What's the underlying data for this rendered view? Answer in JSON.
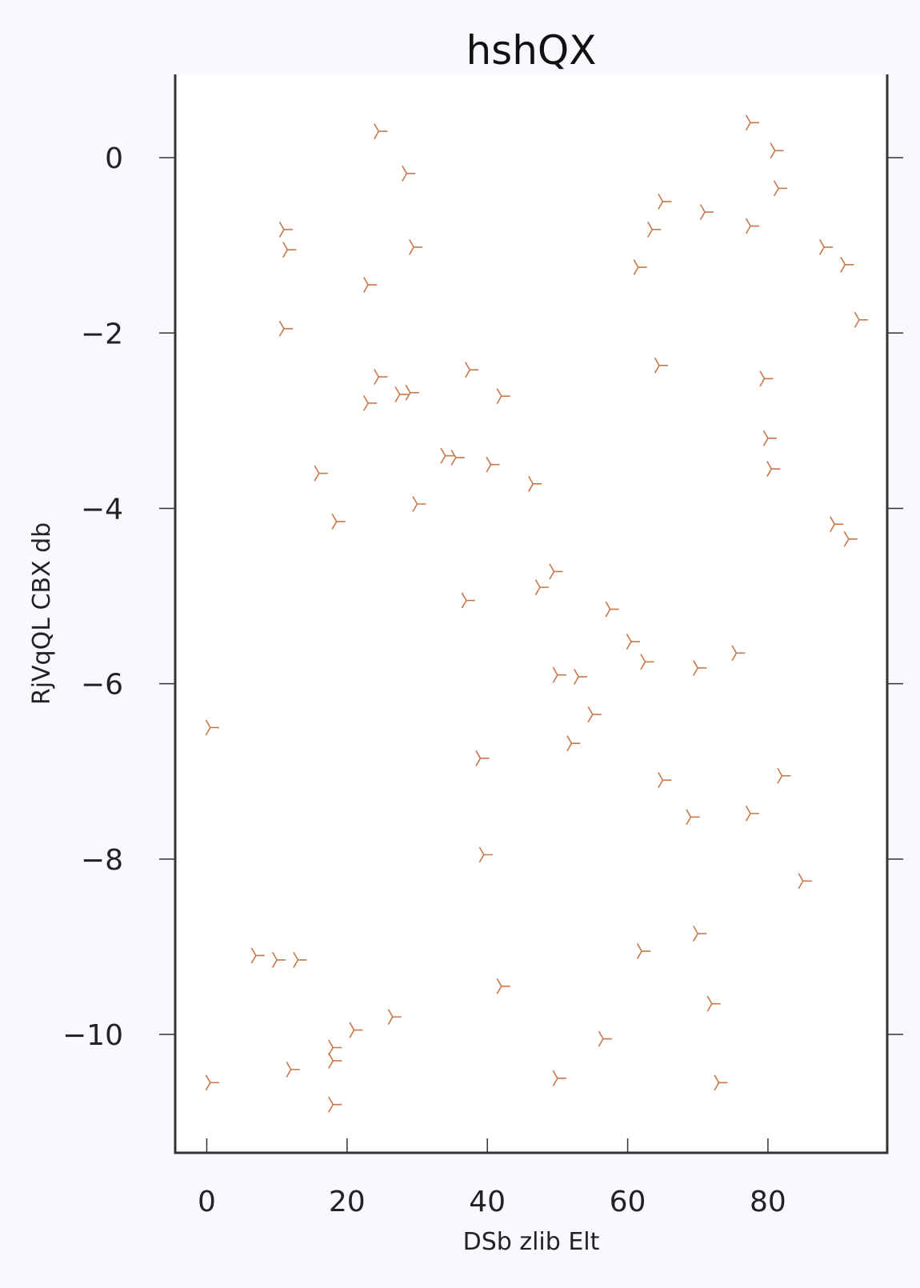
{
  "chart_data": {
    "type": "scatter",
    "title": "hshQX",
    "xlabel": "DSb zlib Elt",
    "ylabel": "RjVqQL CBX db",
    "xlim": [
      -4.5,
      97
    ],
    "ylim": [
      -11.35,
      0.95
    ],
    "xticks": [
      0,
      20,
      40,
      60,
      80
    ],
    "yticks": [
      0,
      -2,
      -4,
      -6,
      -8,
      -10
    ],
    "xtick_labels": [
      "0",
      "20",
      "40",
      "60",
      "80"
    ],
    "ytick_labels": [
      "0",
      "−2",
      "−4",
      "−6",
      "−8",
      "−10"
    ],
    "grid": false,
    "marker": "tri_right",
    "marker_color": "#c87848",
    "points": [
      [
        0.5,
        -6.5
      ],
      [
        0.5,
        -10.55
      ],
      [
        7,
        -9.1
      ],
      [
        10,
        -9.15
      ],
      [
        13,
        -9.15
      ],
      [
        11,
        -0.82
      ],
      [
        11.5,
        -1.05
      ],
      [
        11,
        -1.95
      ],
      [
        12,
        -10.4
      ],
      [
        16,
        -3.6
      ],
      [
        18.5,
        -4.15
      ],
      [
        18,
        -10.15
      ],
      [
        18,
        -10.3
      ],
      [
        18,
        -10.8
      ],
      [
        21,
        -9.95
      ],
      [
        23,
        -1.45
      ],
      [
        23,
        -2.8
      ],
      [
        24.5,
        -2.5
      ],
      [
        24.5,
        0.3
      ],
      [
        26.5,
        -9.8
      ],
      [
        27.5,
        -2.7
      ],
      [
        28.5,
        -0.18
      ],
      [
        29,
        -2.68
      ],
      [
        29.5,
        -1.02
      ],
      [
        30,
        -3.95
      ],
      [
        34,
        -3.4
      ],
      [
        35.5,
        -3.42
      ],
      [
        37,
        -5.05
      ],
      [
        37.5,
        -2.42
      ],
      [
        39,
        -6.85
      ],
      [
        39.5,
        -7.95
      ],
      [
        40.5,
        -3.5
      ],
      [
        42,
        -2.72
      ],
      [
        42,
        -9.45
      ],
      [
        46.5,
        -3.72
      ],
      [
        47.5,
        -4.9
      ],
      [
        49.5,
        -4.72
      ],
      [
        50,
        -5.9
      ],
      [
        50,
        -10.5
      ],
      [
        53,
        -5.92
      ],
      [
        52,
        -6.68
      ],
      [
        55,
        -6.35
      ],
      [
        56.5,
        -10.05
      ],
      [
        57.5,
        -5.15
      ],
      [
        60.5,
        -5.52
      ],
      [
        61.5,
        -1.25
      ],
      [
        62,
        -9.05
      ],
      [
        62.5,
        -5.75
      ],
      [
        63.5,
        -0.82
      ],
      [
        64.5,
        -2.37
      ],
      [
        65,
        -0.5
      ],
      [
        65,
        -7.1
      ],
      [
        69,
        -7.52
      ],
      [
        70,
        -5.82
      ],
      [
        70,
        -8.85
      ],
      [
        71,
        -0.62
      ],
      [
        72,
        -9.65
      ],
      [
        73,
        -10.55
      ],
      [
        75.5,
        -5.65
      ],
      [
        77.5,
        -0.78
      ],
      [
        77.5,
        -7.48
      ],
      [
        77.5,
        0.4
      ],
      [
        79.5,
        -2.52
      ],
      [
        80,
        -3.2
      ],
      [
        80.5,
        -3.55
      ],
      [
        81,
        0.08
      ],
      [
        81.5,
        -0.35
      ],
      [
        82,
        -7.05
      ],
      [
        85,
        -8.25
      ],
      [
        88,
        -1.02
      ],
      [
        89.5,
        -4.18
      ],
      [
        91,
        -1.22
      ],
      [
        91.5,
        -4.35
      ],
      [
        93,
        -1.85
      ]
    ]
  }
}
